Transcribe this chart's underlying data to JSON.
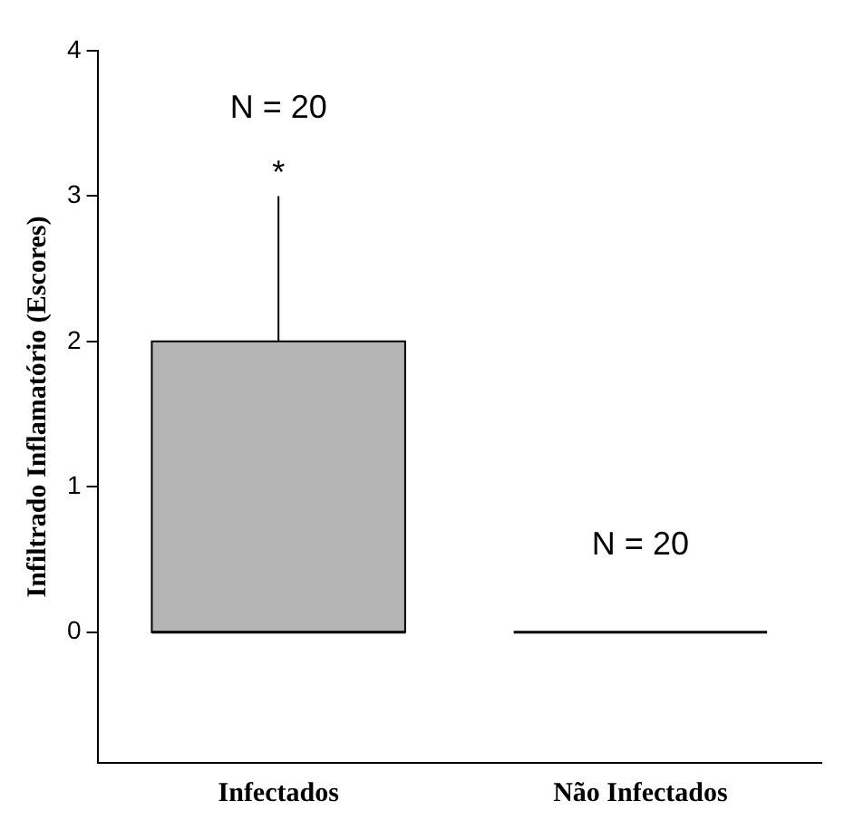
{
  "chart_data": {
    "type": "box",
    "ylabel": "Infiltrado Inflamatório (Escores)",
    "categories": [
      "Infectados",
      "Não Infectados"
    ],
    "boxes": [
      {
        "low": 0,
        "q1": 0,
        "median": 0,
        "q3": 2,
        "high": 3
      },
      {
        "low": 0,
        "q1": 0,
        "median": 0,
        "q3": 0,
        "high": 0
      }
    ],
    "colors": [
      "#b4b4b4",
      "#000000"
    ],
    "ylim": [
      -0.9,
      4
    ],
    "yticks": [
      0,
      1,
      2,
      3,
      4
    ],
    "grid": false,
    "annotations": [
      "N = 20",
      {
        "text": "*",
        "x": "Infectados",
        "y": 3
      },
      "N = 20"
    ]
  }
}
